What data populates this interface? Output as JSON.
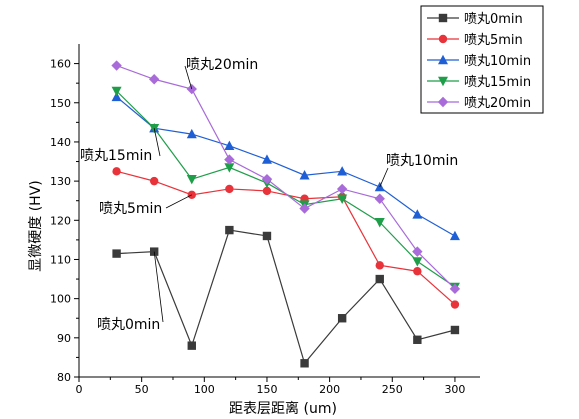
{
  "chart_data": {
    "type": "line",
    "xlabel": "距表层距离 (um)",
    "ylabel": "显微硬度 (HV)",
    "xlim": [
      0,
      320
    ],
    "ylim": [
      80,
      165
    ],
    "x_ticks": [
      0,
      50,
      100,
      150,
      200,
      250,
      300
    ],
    "y_ticks": [
      80,
      90,
      100,
      110,
      120,
      130,
      140,
      150,
      160
    ],
    "legend_position": "top-right",
    "x": [
      30,
      60,
      90,
      120,
      150,
      180,
      210,
      240,
      270,
      300
    ],
    "series": [
      {
        "name": "喷丸0min",
        "color": "#3a3a3a",
        "marker": "square",
        "values": [
          111.5,
          112,
          88,
          117.5,
          116,
          83.5,
          95,
          105,
          89.5,
          92
        ]
      },
      {
        "name": "喷丸5min",
        "color": "#e8333a",
        "marker": "circle",
        "values": [
          132.5,
          130,
          126.5,
          128,
          127.5,
          125.5,
          126,
          108.5,
          107,
          98.5
        ]
      },
      {
        "name": "喷丸10min",
        "color": "#1f5fd6",
        "marker": "triangle-up",
        "values": [
          151.5,
          143.5,
          142,
          139,
          135.5,
          131.5,
          132.5,
          128.5,
          121.5,
          116
        ]
      },
      {
        "name": "喷丸15min",
        "color": "#1f9e4a",
        "marker": "triangle-down",
        "values": [
          153,
          143.5,
          130.5,
          133.5,
          129.5,
          124,
          125.5,
          119.5,
          109.5,
          103
        ]
      },
      {
        "name": "喷丸20min",
        "color": "#a86bd9",
        "marker": "diamond",
        "values": [
          159.5,
          156,
          153.5,
          135.5,
          130.5,
          123,
          128,
          125.5,
          112,
          102.5
        ]
      }
    ],
    "annotations": [
      {
        "text": "喷丸20min",
        "series": "喷丸20min"
      },
      {
        "text": "喷丸15min",
        "series": "喷丸15min"
      },
      {
        "text": "喷丸10min",
        "series": "喷丸10min"
      },
      {
        "text": "喷丸5min",
        "series": "喷丸5min"
      },
      {
        "text": "喷丸0min",
        "series": "喷丸0min"
      }
    ]
  }
}
